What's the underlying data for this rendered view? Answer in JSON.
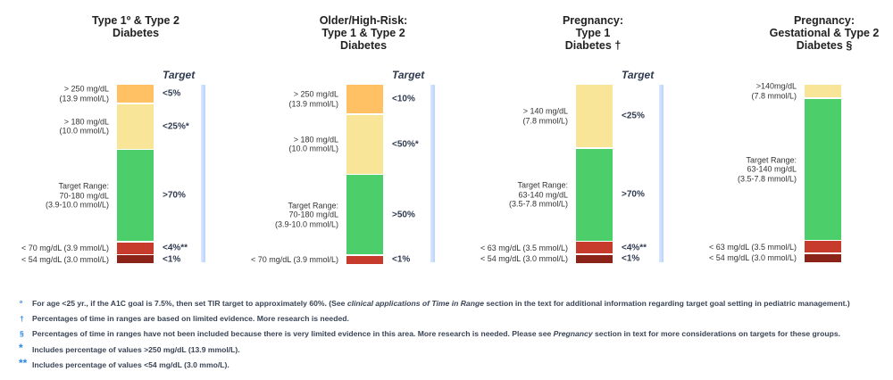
{
  "target_label": "Target",
  "colors": {
    "very_high": "#ffc164",
    "high": "#f9e597",
    "in_range": "#4ccf6b",
    "low": "#c63b2c",
    "very_low": "#8c2318",
    "reference_bar": "#c8dcfb",
    "note_symbol": "#2f86e5"
  },
  "chart_data": [
    {
      "type": "bar",
      "title_lines": [
        "Type 1º & Type 2",
        "Diabetes"
      ],
      "show_target_label": true,
      "segments": [
        {
          "range": "very_high",
          "value": 5,
          "label_lines": [
            "> 250 mg/dL",
            "(13.9 mmol/L)"
          ],
          "target": "<5%"
        },
        {
          "range": "high",
          "value": 25,
          "label_lines": [
            "> 180 mg/dL",
            "(10.0 mmol/L)"
          ],
          "target": "<25%*"
        },
        {
          "range": "in_range",
          "value": 70,
          "label_lines": [
            "Target Range:",
            "70-180 mg/dL",
            "(3.9-10.0 mmol/L)"
          ],
          "target": ">70%"
        },
        {
          "range": "low",
          "value": 4,
          "label_lines": [
            "< 70 mg/dL (3.9 mmol/L)"
          ],
          "target": "<4%**"
        },
        {
          "range": "very_low",
          "value": 1,
          "label_lines": [
            "< 54 mg/dL (3.0 mmol/L)"
          ],
          "target": "<1%"
        }
      ]
    },
    {
      "type": "bar",
      "title_lines": [
        "Older/High-Risk:",
        "Type 1 & Type 2",
        "Diabetes"
      ],
      "show_target_label": true,
      "segments": [
        {
          "range": "very_high",
          "value": 10,
          "label_lines": [
            "> 250 mg/dL",
            "(13.9 mmol/L)"
          ],
          "target": "<10%"
        },
        {
          "range": "high",
          "value": 50,
          "label_lines": [
            "> 180 mg/dL",
            "(10.0 mmol/L)"
          ],
          "target": "<50%*"
        },
        {
          "range": "in_range",
          "value": 50,
          "label_lines": [
            "Target Range:",
            "70-180 mg/dL",
            "(3.9-10.0 mmol/L)"
          ],
          "target": ">50%"
        },
        {
          "range": "low",
          "value": 1,
          "label_lines": [
            "< 70 mg/dL (3.9 mmol/L)"
          ],
          "target": "<1%"
        }
      ]
    },
    {
      "type": "bar",
      "title_lines": [
        "Pregnancy:",
        "Type 1",
        "Diabetes †"
      ],
      "show_target_label": true,
      "segments": [
        {
          "range": "high",
          "value": 25,
          "label_lines": [
            "> 140 mg/dL",
            "(7.8 mmol/L)"
          ],
          "target": "<25%"
        },
        {
          "range": "in_range",
          "value": 70,
          "label_lines": [
            "Target Range:",
            "63-140 mg/dL",
            "(3.5-7.8 mmol/L)"
          ],
          "target": ">70%"
        },
        {
          "range": "low",
          "value": 4,
          "label_lines": [
            "< 63 mg/dL (3.5 mmol/L)"
          ],
          "target": "<4%**"
        },
        {
          "range": "very_low",
          "value": 1,
          "label_lines": [
            "< 54 mg/dL (3.0 mmol/L)"
          ],
          "target": "<1%"
        }
      ]
    },
    {
      "type": "bar",
      "title_lines": [
        "Pregnancy:",
        "Gestational & Type 2",
        "Diabetes §"
      ],
      "show_target_label": false,
      "segments": [
        {
          "range": "high",
          "label_lines": [
            ">140mg/dL",
            "(7.8 mmol/L)"
          ],
          "target": ""
        },
        {
          "range": "in_range",
          "label_lines": [
            "Target Range:",
            "63-140 mg/dL",
            "(3.5-7.8 mmol/L)"
          ],
          "target": ""
        },
        {
          "range": "low",
          "label_lines": [
            "< 63 mg/dL (3.5 mmol/L)"
          ],
          "target": ""
        },
        {
          "range": "very_low",
          "label_lines": [
            "< 54 mg/dL (3.0 mmol/L)"
          ],
          "target": ""
        }
      ]
    }
  ],
  "footnotes": [
    {
      "symbol": "º",
      "parts": [
        {
          "text": "For age <25 yr., if the A1C goal is 7.5%, then set TIR target to approximately 60%. (See "
        },
        {
          "text": "clinical applications of Time in Range",
          "italic": true
        },
        {
          "text": " section in the text for additional information regarding target goal setting in pediatric management.)"
        }
      ]
    },
    {
      "symbol": "†",
      "parts": [
        {
          "text": "Percentages of time in ranges are based on limited evidence. More research is needed."
        }
      ]
    },
    {
      "symbol": "§",
      "parts": [
        {
          "text": "Percentages of time in ranges have not been included because there is very limited evidence in this area. More research is needed. Please see "
        },
        {
          "text": "Pregnancy",
          "italic": true
        },
        {
          "text": " section in text for more considerations on targets for these groups."
        }
      ]
    },
    {
      "symbol": "*",
      "parts": [
        {
          "text": "Includes percentage of values >250 mg/dL (13.9 mmol/L)."
        }
      ]
    },
    {
      "symbol": "**",
      "parts": [
        {
          "text": "Includes percentage of values <54 mg/dL (3.0 mmo/L)."
        }
      ]
    }
  ]
}
